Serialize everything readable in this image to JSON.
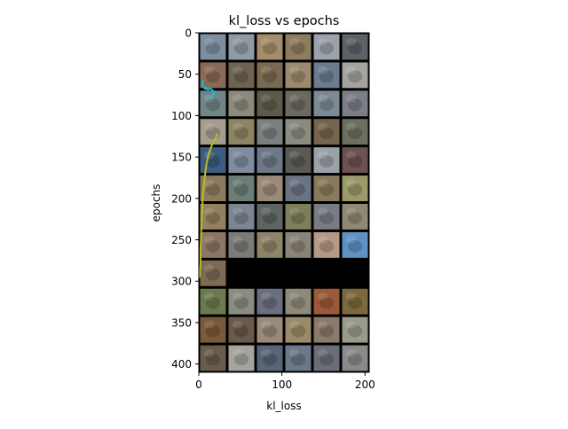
{
  "chart_data": {
    "type": "line",
    "title": "kl_loss vs epochs",
    "xlabel": "kl_loss",
    "ylabel": "epochs",
    "xlim": [
      0,
      205
    ],
    "ylim": [
      410,
      0
    ],
    "y_inverted": true,
    "x_ticks": [
      0,
      100,
      200
    ],
    "y_ticks": [
      0,
      50,
      100,
      150,
      200,
      250,
      300,
      350,
      400
    ],
    "grid": false,
    "background": "image grid of sample thumbnails (6 columns x 12 rows)",
    "series": [
      {
        "color": "#17becf",
        "points": [
          [
            5,
            58
          ],
          [
            4,
            62
          ],
          [
            6,
            66
          ],
          [
            8,
            68
          ],
          [
            9,
            66
          ],
          [
            11,
            69
          ],
          [
            13,
            67
          ],
          [
            15,
            68
          ],
          [
            17,
            70
          ],
          [
            19,
            71
          ],
          [
            18,
            74
          ],
          [
            16,
            77
          ],
          [
            15,
            80
          ]
        ]
      },
      {
        "color": "#bcbd22",
        "points": [
          [
            22,
            122
          ],
          [
            20,
            128
          ],
          [
            16,
            135
          ],
          [
            12,
            146
          ],
          [
            9,
            160
          ],
          [
            7,
            175
          ],
          [
            5,
            195
          ],
          [
            4,
            215
          ],
          [
            3,
            240
          ],
          [
            2,
            262
          ],
          [
            2,
            278
          ],
          [
            1,
            295
          ]
        ]
      }
    ],
    "thumbnail_tones": [
      [
        "#7d8ea0",
        "#8f9aa4",
        "#a58d6a",
        "#8e7c5f",
        "#9ba2ab",
        "#5d6268"
      ],
      [
        "#8a6a56",
        "#6e6253",
        "#7a6a52",
        "#9b8a6d",
        "#6c7b8f",
        "#a4a39d"
      ],
      [
        "#6f8588",
        "#8b8a7c",
        "#5d5a4c",
        "#6b6960",
        "#7d8a96",
        "#7a7f86"
      ],
      [
        "#a49c8d",
        "#8d8463",
        "#7b7f80",
        "#8a8c80",
        "#75654f",
        "#6d6f5f"
      ],
      [
        "#3c5d80",
        "#7e8ba0",
        "#6d7888",
        "#5a5a52",
        "#9aa1a9",
        "#6d5150"
      ],
      [
        "#8c7a5e",
        "#6b7d74",
        "#9b8a77",
        "#6a7482",
        "#8a7a5c",
        "#9a9a6a"
      ],
      [
        "#93805e",
        "#7d8593",
        "#5f6560",
        "#7c7f5a",
        "#7a7c85",
        "#8f8974"
      ],
      [
        "#8d7664",
        "#7c7b78",
        "#8e8468",
        "#8a8377",
        "#b59886",
        "#5f92c4"
      ],
      [
        "#7c6a55",
        "#000000",
        "#000000",
        "#000000",
        "#000000",
        "#000000"
      ],
      [
        "#6c7a4e",
        "#8a8c80",
        "#6a6e7e",
        "#8e8a7a",
        "#9a5a3a",
        "#7c6a3e"
      ],
      [
        "#7a5a3a",
        "#6a5a4a",
        "#9a8a7a",
        "#9a8a6a",
        "#8a7a6a",
        "#9a9a8a"
      ],
      [
        "#6a5c4a",
        "#a6a49e",
        "#5a6478",
        "#6a7888",
        "#6a6e78",
        "#8a8a8a"
      ]
    ]
  }
}
